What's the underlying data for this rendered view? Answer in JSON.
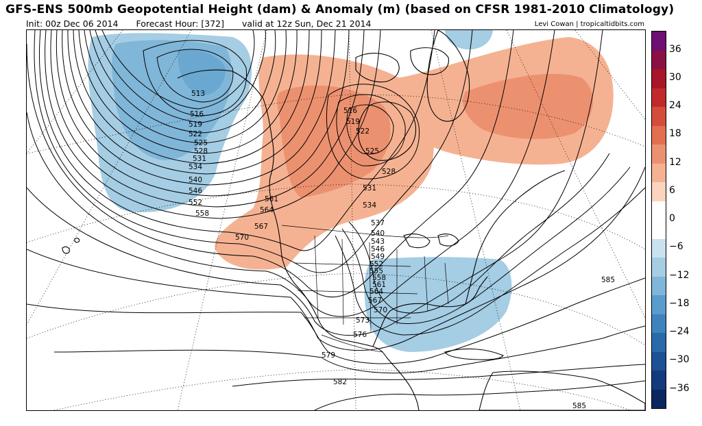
{
  "header": {
    "title": "GFS-ENS 500mb Geopotential Height (dam) & Anomaly (m) (based on CFSR 1981-2010 Climatology)",
    "init": "Init: 00z Dec 06 2014",
    "forecast_hour": "Forecast Hour: [372]",
    "valid": "valid at 12z Sun, Dec 21 2014",
    "credit": "Levi Cowan | tropicaltidbits.com"
  },
  "colorbar": {
    "labels": [
      "36",
      "30",
      "24",
      "18",
      "12",
      "6",
      "0",
      "−6",
      "−12",
      "−18",
      "−24",
      "−30",
      "−36"
    ],
    "colors": [
      "#6d0f73",
      "#8b0f43",
      "#a8162a",
      "#c12a2b",
      "#d44d3a",
      "#e26f4f",
      "#ec9170",
      "#f5b292",
      "#fbd4bd",
      "#ffffff",
      "#ffffff",
      "#c9e2f0",
      "#a5cde4",
      "#80b6d8",
      "#5a9ccb",
      "#3f83bd",
      "#2a69aa",
      "#1d5095",
      "#133a7c",
      "#0a2760"
    ]
  },
  "contour_labels": {
    "west": [
      "513",
      "516",
      "519",
      "522",
      "525",
      "528",
      "531",
      "534",
      "540",
      "546",
      "552",
      "558"
    ],
    "rockies": [
      "561",
      "564",
      "567",
      "570"
    ],
    "canada": [
      "516",
      "519",
      "522",
      "525",
      "528",
      "531",
      "534"
    ],
    "central": [
      "537",
      "540",
      "543",
      "546",
      "549",
      "552",
      "555",
      "558",
      "561",
      "564",
      "567",
      "570",
      "573",
      "576",
      "579",
      "582"
    ],
    "east": [
      "585",
      "585"
    ]
  },
  "legend_colors": {
    "positive_anomaly": "#ec9170",
    "negative_anomaly": "#80b6d8"
  }
}
